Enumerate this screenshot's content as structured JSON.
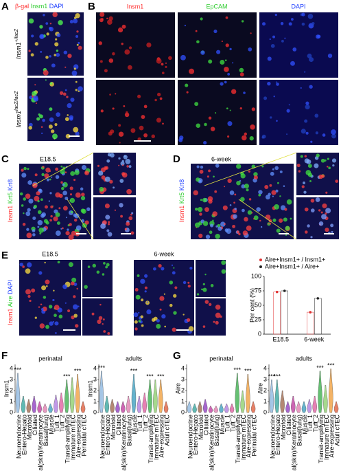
{
  "panels": {
    "a": {
      "label": "A",
      "stain": [
        "β-gal",
        "Insm1",
        "DAPI"
      ],
      "stain_colors": [
        "#ff3030",
        "#2ecc2e",
        "#2040ff"
      ],
      "rows": [
        {
          "gene": "Insm1",
          "genotype": "+/lacZ"
        },
        {
          "gene": "Insm1",
          "genotype": "lacZ/lacZ"
        }
      ]
    },
    "b": {
      "label": "B",
      "columns": [
        "Insm1",
        "EpCAM",
        "DAPI"
      ],
      "column_colors": [
        "#ff3030",
        "#2ecc2e",
        "#2040ff"
      ]
    },
    "c": {
      "label": "C",
      "stage": "E18.5",
      "stain": [
        "Insm1",
        "Krt5",
        "Krt8"
      ],
      "stain_colors": [
        "#ff3030",
        "#2ecc2e",
        "#2040ff"
      ]
    },
    "d": {
      "label": "D",
      "stage": "6-week",
      "stain": [
        "Insm1",
        "Krt5",
        "Krt8"
      ],
      "stain_colors": [
        "#ff3030",
        "#2ecc2e",
        "#2040ff"
      ]
    },
    "e": {
      "label": "E",
      "stages": [
        "E18.5",
        "6-week"
      ],
      "stain": [
        "Insm1",
        "Aire",
        "DAPI"
      ],
      "stain_colors": [
        "#ff3030",
        "#2ecc2e",
        "#2040ff"
      ]
    },
    "f": {
      "label": "F"
    },
    "g": {
      "label": "G"
    }
  },
  "chart_data": [
    {
      "type": "bar",
      "y_label": "Per cent (%)",
      "categories": [
        "E18.5",
        "6-week"
      ],
      "series": [
        {
          "name": "Aire+Insm1+ / Insm1+",
          "color": "#e03030",
          "values": [
            73,
            38
          ]
        },
        {
          "name": "Aire+Insm1+ / Aire+",
          "color": "#222222",
          "values": [
            75,
            62
          ]
        }
      ],
      "ylim": [
        0,
        100
      ],
      "yticks": [
        0,
        25,
        50,
        75,
        100
      ]
    },
    {
      "type": "violin",
      "title": "perinatal",
      "y_label": "Insm1",
      "categories": [
        "Neuroendocrine",
        "Entero-Hepato",
        "Microfold",
        "Ciliated",
        "Basal(skin)/Keratinocyte",
        "Basal(lung)",
        "Muscle",
        "Tuft_1",
        "Tuft_2",
        "Transit-amplifying",
        "Immature mTEC",
        "Aire-expressing",
        "Perinatal cTEC"
      ],
      "values": [
        3.6,
        1.5,
        1.2,
        1.5,
        1.0,
        0.8,
        0.8,
        1.6,
        1.8,
        3.0,
        3.2,
        3.5,
        1.0
      ],
      "significance": [
        "***",
        null,
        null,
        null,
        null,
        null,
        null,
        null,
        null,
        "***",
        null,
        "***",
        null
      ],
      "colors": [
        "#8fb8e0",
        "#3aa8a0",
        "#a06a50",
        "#9040c0",
        "#c040a0",
        "#e080b0",
        "#40a0c0",
        "#b080e0",
        "#e060a0",
        "#40b050",
        "#90d070",
        "#f0a040",
        "#e06040"
      ],
      "ylim": [
        0,
        4.4
      ],
      "yticks": [
        0,
        1,
        2,
        3,
        4
      ]
    },
    {
      "type": "violin",
      "title": "adults",
      "y_label": "Insm1",
      "categories": [
        "Neuroendocrine",
        "Entero-Hepato",
        "Microfold",
        "Ciliated",
        "Basal(skin)/Keratinocyte",
        "Basal(lung)",
        "Muscle",
        "Tuft_1",
        "Tuft_2",
        "Transit-amplifying",
        "Immature mTEC",
        "Aire-expressing",
        "Adult cTEC"
      ],
      "values": [
        3.8,
        1.5,
        1.2,
        1.0,
        1.0,
        1.5,
        3.5,
        1.5,
        1.8,
        3.0,
        3.0,
        3.0,
        1.0
      ],
      "significance": [
        "***",
        null,
        null,
        null,
        null,
        null,
        "***",
        null,
        null,
        "***",
        null,
        "***",
        null
      ],
      "colors": [
        "#8fb8e0",
        "#3aa8a0",
        "#a06a50",
        "#9040c0",
        "#c040a0",
        "#e080b0",
        "#40a0c0",
        "#b080e0",
        "#e060a0",
        "#40b050",
        "#90d070",
        "#f0a040",
        "#e06040"
      ],
      "ylim": [
        0,
        4.4
      ],
      "yticks": [
        0,
        1,
        2,
        3,
        4
      ]
    },
    {
      "type": "violin",
      "title": "perinatal",
      "y_label": "Aire",
      "categories": [
        "Neuroendocrine",
        "Entero-Hepato",
        "Microfold",
        "Ciliated",
        "Basal(skin)/Keratinocyte",
        "Basal(lung)",
        "Muscle",
        "Tuft_1",
        "Tuft_2",
        "Transit-amplifying",
        "Immature mTEC",
        "Aire-expressing",
        "Perinatal cTEC"
      ],
      "values": [
        1.0,
        0.8,
        1.0,
        1.2,
        0.6,
        0.6,
        0.8,
        0.8,
        0.8,
        3.6,
        2.0,
        3.5,
        1.0
      ],
      "significance": [
        null,
        null,
        null,
        null,
        null,
        null,
        null,
        null,
        null,
        "***",
        null,
        "***",
        null
      ],
      "colors": [
        "#8fb8e0",
        "#3aa8a0",
        "#a06a50",
        "#9040c0",
        "#c040a0",
        "#e080b0",
        "#40a0c0",
        "#b080e0",
        "#e060a0",
        "#40b050",
        "#90d070",
        "#f0a040",
        "#e06040"
      ],
      "ylim": [
        0,
        4.4
      ],
      "yticks": [
        0,
        1,
        2,
        3,
        4
      ]
    },
    {
      "type": "violin",
      "title": "adults",
      "y_label": "Aire",
      "categories": [
        "Neuroendocrine",
        "Entero-Hepato",
        "Microfold",
        "Ciliated",
        "Basal(skin)/Keratinocyte",
        "Basal(lung)",
        "Muscle",
        "Tuft_1",
        "Tuft_2",
        "Transit-amplifying",
        "Immature mTEC",
        "Aire-expressing",
        "Adult cTEC"
      ],
      "values": [
        3.0,
        3.0,
        2.0,
        1.0,
        1.5,
        1.0,
        1.0,
        1.2,
        1.5,
        3.8,
        2.5,
        4.0,
        1.0
      ],
      "significance": [
        "***",
        "***",
        null,
        null,
        null,
        null,
        null,
        null,
        null,
        "***",
        null,
        "***",
        null
      ],
      "colors": [
        "#8fb8e0",
        "#3aa8a0",
        "#a06a50",
        "#9040c0",
        "#c040a0",
        "#e080b0",
        "#40a0c0",
        "#b080e0",
        "#e060a0",
        "#40b050",
        "#90d070",
        "#f0a040",
        "#e06040"
      ],
      "ylim": [
        0,
        4.4
      ],
      "yticks": [
        0,
        1,
        2,
        3,
        4
      ]
    }
  ]
}
